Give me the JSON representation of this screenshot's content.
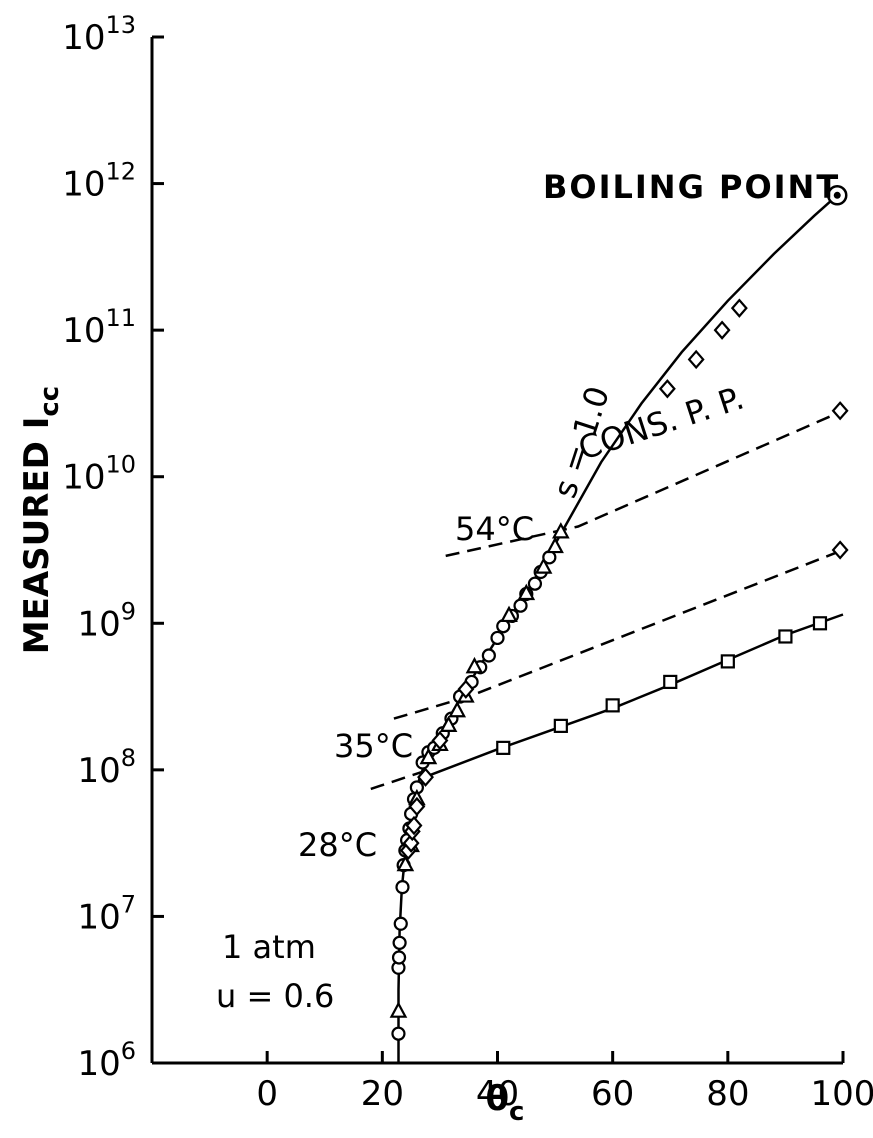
{
  "chart_data": {
    "type": "scatter",
    "title": "",
    "xlabel": "θc",
    "ylabel": "MEASURED Icc",
    "ylabel_main": "MEASURED I",
    "ylabel_sub": "cc",
    "xlabel_main": "θ",
    "xlabel_sub": "c",
    "x_scale": "linear",
    "y_scale": "log",
    "xlim": [
      -20,
      100
    ],
    "ylim_exponents": [
      6,
      13
    ],
    "x_ticks": [
      {
        "value": 0,
        "label": "0"
      },
      {
        "value": 20,
        "label": "20"
      },
      {
        "value": 40,
        "label": "40"
      },
      {
        "value": 60,
        "label": "60"
      },
      {
        "value": 80,
        "label": "80"
      },
      {
        "value": 100,
        "label": "100"
      }
    ],
    "y_ticks": [
      {
        "exp": 6,
        "base": "10",
        "sup": "6"
      },
      {
        "exp": 7,
        "base": "10",
        "sup": "7"
      },
      {
        "exp": 8,
        "base": "10",
        "sup": "8"
      },
      {
        "exp": 9,
        "base": "10",
        "sup": "9"
      },
      {
        "exp": 10,
        "base": "10",
        "sup": "10"
      },
      {
        "exp": 11,
        "base": "10",
        "sup": "11"
      },
      {
        "exp": 12,
        "base": "10",
        "sup": "12"
      },
      {
        "exp": 13,
        "base": "10",
        "sup": "13"
      }
    ],
    "lines": [
      {
        "style": "solid",
        "x": [
          22.8,
          22.8,
          23.0,
          23.4,
          24.2,
          25.2,
          26.5,
          28.0,
          30.0,
          33.0,
          36.0,
          40.0,
          44.0,
          48.0,
          52.0,
          58.0,
          65.0,
          72.0,
          80.0,
          88.0,
          95.0,
          99.0
        ],
        "log10_y": [
          6.0,
          6.5,
          6.9,
          7.2,
          7.5,
          7.75,
          7.95,
          8.1,
          8.25,
          8.45,
          8.65,
          8.9,
          9.15,
          9.4,
          9.68,
          10.1,
          10.5,
          10.85,
          11.2,
          11.52,
          11.78,
          11.92
        ]
      },
      {
        "style": "solid",
        "x": [
          28.0,
          40.0,
          50.0,
          60.0,
          70.0,
          80.0,
          90.0,
          100.0
        ],
        "log10_y": [
          7.96,
          8.14,
          8.28,
          8.42,
          8.58,
          8.75,
          8.92,
          9.06
        ]
      },
      {
        "style": "dashed",
        "x": [
          22.0,
          35.0,
          100.0
        ],
        "log10_y": [
          8.35,
          8.5,
          9.5
        ]
      },
      {
        "style": "dashed",
        "x": [
          31.0,
          54.0,
          100.0
        ],
        "log10_y": [
          9.46,
          9.66,
          10.45
        ]
      },
      {
        "style": "dashed",
        "x": [
          18.0,
          28.0
        ],
        "log10_y": [
          7.87,
          8.0
        ]
      }
    ],
    "series": [
      {
        "marker": "circle",
        "x": [
          22.8,
          22.8,
          22.9,
          23.0,
          23.2,
          23.5,
          23.7,
          24.0,
          24.3,
          24.7,
          25.0,
          25.5,
          26.0,
          27.0,
          28.0,
          29.0,
          30.5,
          32.0,
          33.5,
          35.5,
          37.0,
          38.5,
          40.0,
          41.0,
          42.5,
          44.0,
          45.0,
          46.5,
          47.5,
          49.0
        ],
        "log10_y": [
          6.2,
          6.65,
          6.72,
          6.82,
          6.95,
          7.2,
          7.35,
          7.45,
          7.52,
          7.6,
          7.7,
          7.8,
          7.88,
          8.05,
          8.12,
          8.15,
          8.25,
          8.35,
          8.5,
          8.6,
          8.7,
          8.78,
          8.9,
          8.98,
          9.05,
          9.12,
          9.2,
          9.27,
          9.35,
          9.45
        ]
      },
      {
        "marker": "triangle",
        "x": [
          22.8,
          24.0,
          25.0,
          26.0,
          28.0,
          30.0,
          31.5,
          33.0,
          34.5,
          36.0,
          42.0,
          45.0,
          48.0,
          50.0,
          51.0
        ],
        "log10_y": [
          6.35,
          7.35,
          7.48,
          7.8,
          8.08,
          8.17,
          8.3,
          8.4,
          8.5,
          8.7,
          9.05,
          9.2,
          9.38,
          9.52,
          9.62
        ]
      },
      {
        "marker": "diamond",
        "x": [
          24.5,
          25.0,
          25.2,
          25.5,
          26.0,
          27.5,
          30.0,
          34.5,
          69.5,
          74.5,
          79.0,
          82.0,
          99.5,
          99.5
        ],
        "log10_y": [
          7.45,
          7.5,
          7.58,
          7.62,
          7.75,
          7.95,
          8.2,
          8.55,
          10.6,
          10.8,
          11.0,
          11.15,
          10.45,
          9.5
        ]
      },
      {
        "marker": "square",
        "x": [
          41.0,
          51.0,
          60.0,
          70.0,
          80.0,
          90.0,
          96.0
        ],
        "log10_y": [
          8.15,
          8.3,
          8.44,
          8.6,
          8.74,
          8.91,
          9.0
        ]
      },
      {
        "marker": "bullseye",
        "x": [
          99.0
        ],
        "log10_y": [
          11.92
        ]
      }
    ],
    "annotations": {
      "boiling_point": "BOILING POINT",
      "s_label": "s = 1.0",
      "t54": "54°C",
      "cons_pp": "CONS. P. P.",
      "t35": "35°C",
      "t28": "28°C",
      "atm": "1 atm",
      "u_val": "u = 0.6"
    }
  }
}
